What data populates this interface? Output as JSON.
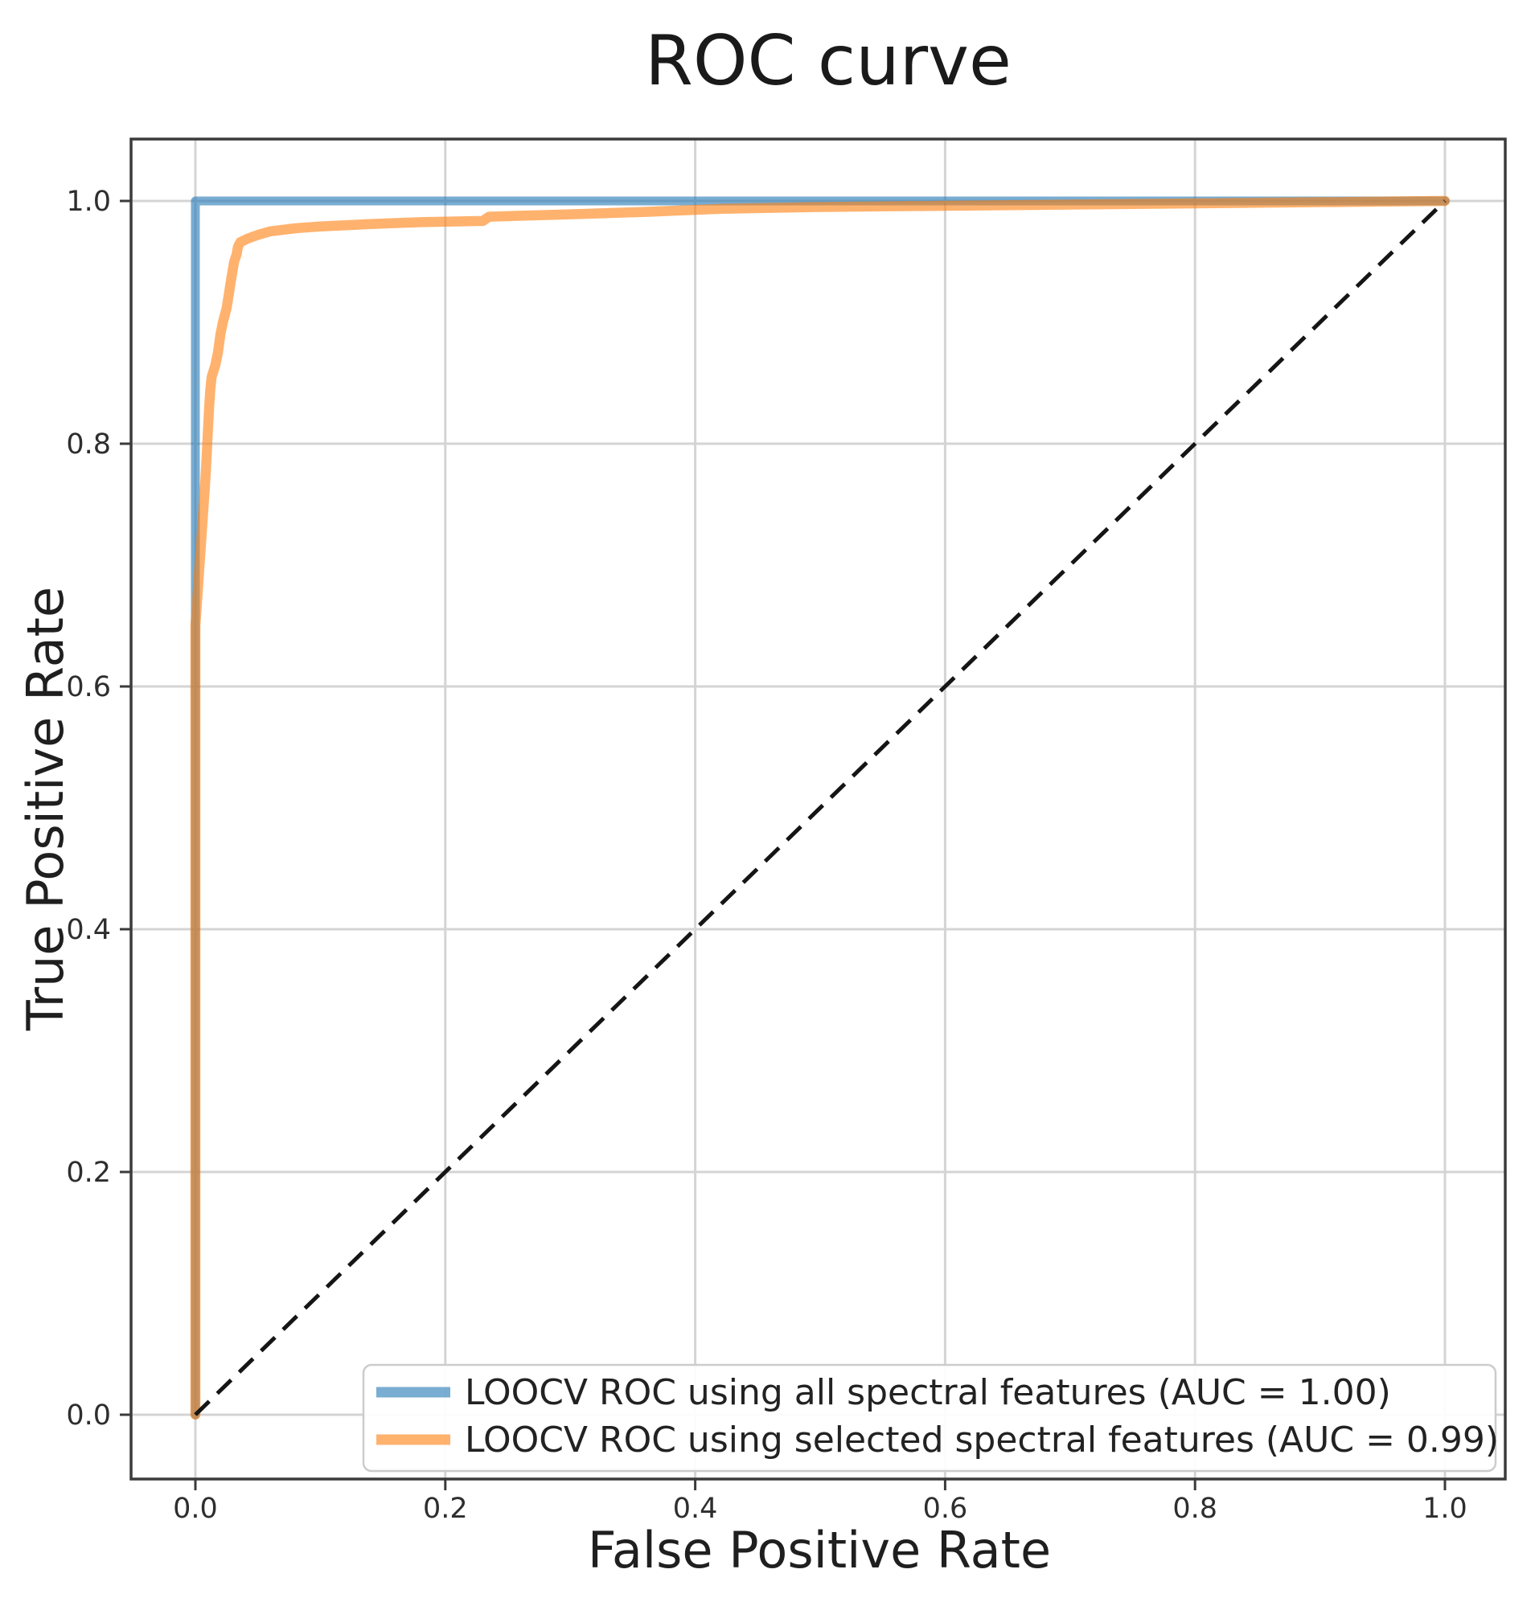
{
  "figure": {
    "title": "ROC curve"
  },
  "axes": {
    "xlabel": "False Positive Rate",
    "ylabel": "True Positive Rate",
    "x_tick_labels": [
      "0.0",
      "0.2",
      "0.4",
      "0.6",
      "0.8",
      "1.0"
    ],
    "y_tick_labels": [
      "0.0",
      "0.2",
      "0.4",
      "0.6",
      "0.8",
      "1.0"
    ],
    "x_tick_values": [
      0,
      0.2,
      0.4,
      0.6,
      0.8,
      1.0
    ],
    "y_tick_values": [
      0,
      0.2,
      0.4,
      0.6,
      0.8,
      1.0
    ]
  },
  "colors": {
    "series_blue_hex": "#1f77b4",
    "series_orange_hex": "#ff7f0e",
    "series_blue_rgba": "rgba(31,119,180,0.6)",
    "series_orange_rgba": "rgba(255,127,14,0.6)",
    "diagonal": "#151515",
    "grid": "#d4d4d4",
    "spine": "#3b3b3b",
    "legend_border": "#cccccc",
    "legend_fill": "rgba(255,255,255,0.92)"
  },
  "legend": {
    "entries": [
      {
        "label": "LOOCV ROC using all spectral features (AUC = 1.00)",
        "color_rgba": "rgba(31,119,180,0.6)"
      },
      {
        "label": "LOOCV ROC using selected spectral features (AUC = 0.99)",
        "color_rgba": "rgba(255,127,14,0.6)"
      }
    ]
  },
  "chart_data": {
    "type": "line",
    "title": "ROC curve",
    "xlabel": "False Positive Rate",
    "ylabel": "True Positive Rate",
    "xlim": [
      -0.05,
      1.05
    ],
    "ylim": [
      -0.05,
      1.05
    ],
    "grid": true,
    "legend_position": "lower right",
    "x_ticks": [
      0,
      0.2,
      0.4,
      0.6,
      0.8,
      1.0
    ],
    "y_ticks": [
      0,
      0.2,
      0.4,
      0.6,
      0.8,
      1.0
    ],
    "series": [
      {
        "name": "LOOCV ROC using all spectral features (AUC = 1.00)",
        "auc": 1.0,
        "color": "#1f77b4",
        "alpha": 0.6,
        "line_style": "solid",
        "in_legend": true,
        "points": [
          [
            0,
            0
          ],
          [
            0,
            1
          ],
          [
            1,
            1
          ]
        ]
      },
      {
        "name": "LOOCV ROC using selected spectral features (AUC = 0.99)",
        "auc": 0.99,
        "color": "#ff7f0e",
        "alpha": 0.6,
        "line_style": "solid",
        "in_legend": true,
        "points": [
          [
            0,
            0
          ],
          [
            0,
            0.65
          ],
          [
            0.002,
            0.68
          ],
          [
            0.004,
            0.71
          ],
          [
            0.006,
            0.74
          ],
          [
            0.008,
            0.77
          ],
          [
            0.009,
            0.79
          ],
          [
            0.01,
            0.81
          ],
          [
            0.011,
            0.83
          ],
          [
            0.012,
            0.845
          ],
          [
            0.013,
            0.855
          ],
          [
            0.016,
            0.865
          ],
          [
            0.018,
            0.875
          ],
          [
            0.02,
            0.89
          ],
          [
            0.022,
            0.9
          ],
          [
            0.025,
            0.912
          ],
          [
            0.027,
            0.925
          ],
          [
            0.029,
            0.938
          ],
          [
            0.031,
            0.95
          ],
          [
            0.033,
            0.956
          ],
          [
            0.034,
            0.962
          ],
          [
            0.036,
            0.966
          ],
          [
            0.042,
            0.969
          ],
          [
            0.05,
            0.972
          ],
          [
            0.06,
            0.975
          ],
          [
            0.08,
            0.9775
          ],
          [
            0.1,
            0.979
          ],
          [
            0.14,
            0.981
          ],
          [
            0.18,
            0.9825
          ],
          [
            0.23,
            0.9835
          ],
          [
            0.235,
            0.987
          ],
          [
            0.3,
            0.989
          ],
          [
            0.36,
            0.991
          ],
          [
            0.42,
            0.9935
          ],
          [
            0.5,
            0.995
          ],
          [
            0.6,
            0.996
          ],
          [
            0.7,
            0.997
          ],
          [
            0.85,
            0.9985
          ],
          [
            1.0,
            1.0
          ]
        ]
      },
      {
        "name": "chance-diagonal",
        "color": "#000000",
        "alpha": 1.0,
        "line_style": "dashed",
        "in_legend": false,
        "points": [
          [
            0,
            0
          ],
          [
            1,
            1
          ]
        ]
      }
    ]
  }
}
